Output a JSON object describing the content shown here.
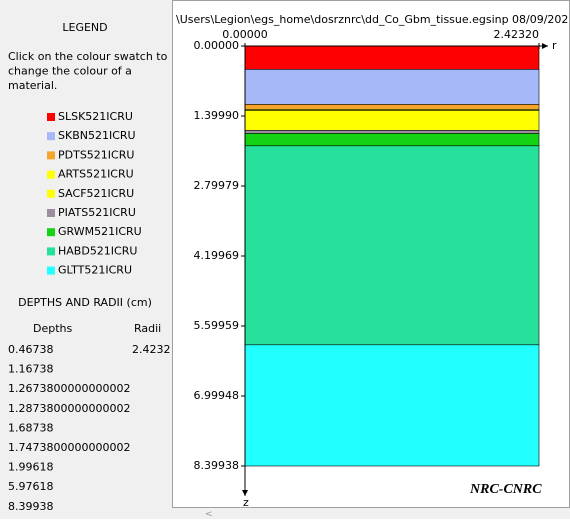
{
  "legend": {
    "title": "LEGEND",
    "instructions": [
      "Click on the colour swatch to",
      "change the colour of a",
      "material."
    ],
    "materials": [
      {
        "name": "SLSK521ICRU",
        "color": "#ff0000"
      },
      {
        "name": "SKBN521ICRU",
        "color": "#a6b8f8"
      },
      {
        "name": "PDTS521ICRU",
        "color": "#f4a52a"
      },
      {
        "name": "ARTS521ICRU",
        "color": "#ffff00"
      },
      {
        "name": "SACF521ICRU",
        "color": "#ffff00"
      },
      {
        "name": "PIATS521ICRU",
        "color": "#a08ca0"
      },
      {
        "name": "GRWM521ICRU",
        "color": "#14d214"
      },
      {
        "name": "HABD521ICRU",
        "color": "#26e19c"
      },
      {
        "name": "GLTT521ICRU",
        "color": "#22ffff"
      }
    ]
  },
  "dimensions": {
    "title": "DEPTHS AND RADII (cm)",
    "depths_header": "Depths",
    "radii_header": "Radii",
    "depths": [
      0.46738,
      1.16738,
      1.2673800000000002,
      1.2873800000000002,
      1.68738,
      1.7473800000000002,
      1.99618,
      5.97618,
      8.39938
    ],
    "radii": [
      2.4232
    ]
  },
  "viewer": {
    "file_path": "\\Users\\Legion\\egs_home\\dosrznrc\\dd_Co_Gbm_tissue.egsinp",
    "date": "08/09/202",
    "r_axis": {
      "label": "r",
      "ticks": [
        {
          "value": 0,
          "label": "0.00000"
        },
        {
          "value": 2.4232,
          "label": "2.42320"
        }
      ]
    },
    "z_axis": {
      "label": "z",
      "ticks": [
        {
          "value": 0,
          "label": "0.00000"
        },
        {
          "value": 1.3999,
          "label": "1.39990"
        },
        {
          "value": 2.79979,
          "label": "2.79979"
        },
        {
          "value": 4.19969,
          "label": "4.19969"
        },
        {
          "value": 5.59959,
          "label": "5.59959"
        },
        {
          "value": 6.99948,
          "label": "6.99948"
        },
        {
          "value": 8.39938,
          "label": "8.39938"
        }
      ]
    },
    "logo": "NRC-CNRC"
  }
}
